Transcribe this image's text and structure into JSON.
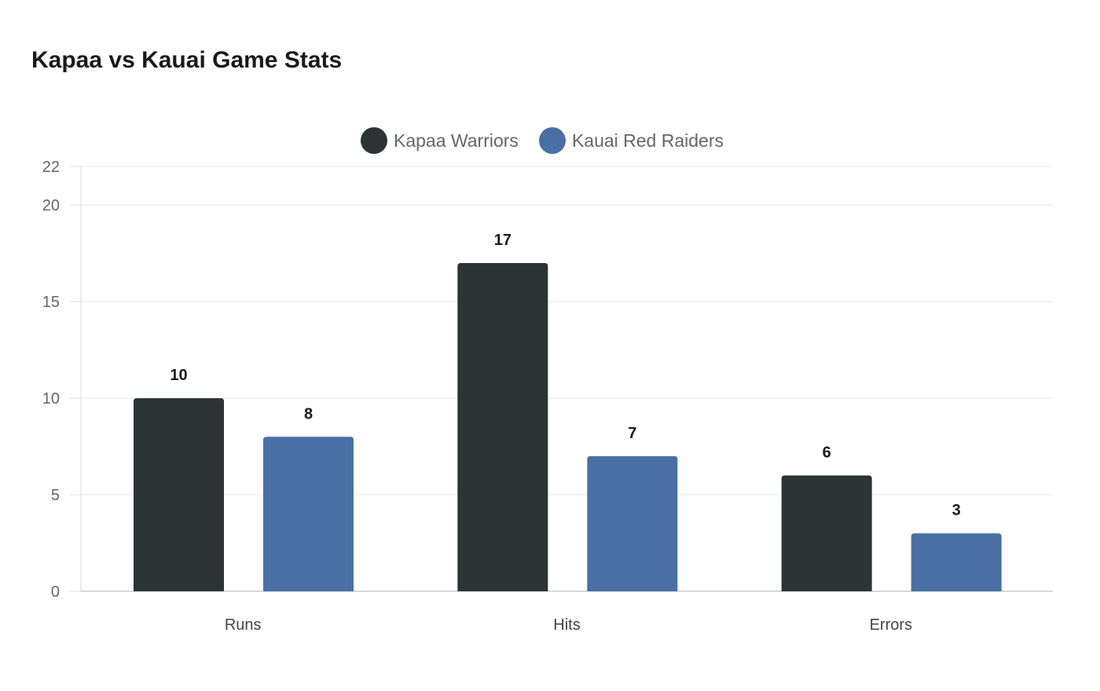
{
  "chart_data": {
    "type": "bar",
    "title": "Kapaa vs Kauai Game Stats",
    "categories": [
      "Runs",
      "Hits",
      "Errors"
    ],
    "series": [
      {
        "name": "Kapaa Warriors",
        "values": [
          10,
          17,
          6
        ],
        "color": "#2d3436"
      },
      {
        "name": "Kauai Red Raiders",
        "values": [
          8,
          7,
          3
        ],
        "color": "#4a6fa5"
      }
    ],
    "xlabel": "",
    "ylabel": "",
    "ylim": [
      0,
      22
    ],
    "yticks": [
      0,
      5,
      10,
      15,
      20,
      22
    ],
    "grid": true,
    "legend": "top-center",
    "data_labels": true
  }
}
